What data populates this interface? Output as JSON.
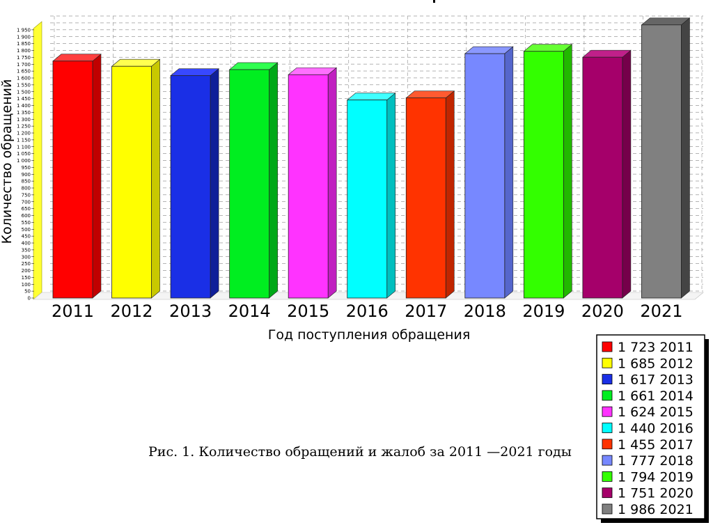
{
  "chart_data": {
    "type": "bar",
    "categories": [
      "2011",
      "2012",
      "2013",
      "2014",
      "2015",
      "2016",
      "2017",
      "2018",
      "2019",
      "2020",
      "2021"
    ],
    "values": [
      1723,
      1685,
      1617,
      1661,
      1624,
      1440,
      1455,
      1777,
      1794,
      1751,
      1986
    ],
    "colors": [
      "#ff0000",
      "#ffff00",
      "#1a2fe6",
      "#00ee20",
      "#ff33ff",
      "#00ffff",
      "#ff3300",
      "#7788ff",
      "#33ff00",
      "#a5006a",
      "#808080"
    ],
    "side_colors": [
      "#c00000",
      "#c8c800",
      "#0f1f99",
      "#00a818",
      "#c020c0",
      "#00bfbf",
      "#c02600",
      "#5566cc",
      "#22b800",
      "#75004a",
      "#444444"
    ],
    "top_colors": [
      "#ff4040",
      "#ffff50",
      "#3848ff",
      "#30ff50",
      "#ff70ff",
      "#40ffff",
      "#ff5a30",
      "#8a98ff",
      "#66ff33",
      "#c0208a",
      "#666666"
    ],
    "ylabel": "Количество обращений",
    "xlabel": "Год поступления обращения",
    "ylim": [
      0,
      2000
    ],
    "ytick_step": 50,
    "ytick_labels": [
      "0",
      "50",
      "100",
      "150",
      "200",
      "250",
      "300",
      "350",
      "400",
      "450",
      "500",
      "550",
      "600",
      "650",
      "700",
      "750",
      "800",
      "850",
      "900",
      "950",
      "1 000",
      "1 050",
      "1 100",
      "1 150",
      "1 200",
      "1 250",
      "1 300",
      "1 350",
      "1 400",
      "1 450",
      "1 500",
      "1 550",
      "1 600",
      "1 650",
      "1 700",
      "1 750",
      "1 800",
      "1 850",
      "1 900",
      "1 950"
    ],
    "grid": true,
    "legend": {
      "placement": "bottom-right",
      "entries": [
        "1 723 2011",
        "1 685 2012",
        "1 617 2013",
        "1 661 2014",
        "1 624 2015",
        "1 440 2016",
        "1 455 2017",
        "1 777 2018",
        "1 794 2019",
        "1 751 2020",
        "1 986 2021"
      ]
    }
  },
  "caption": "Рис. 1. Количество обращений и жалоб за 2011 —2021 годы"
}
